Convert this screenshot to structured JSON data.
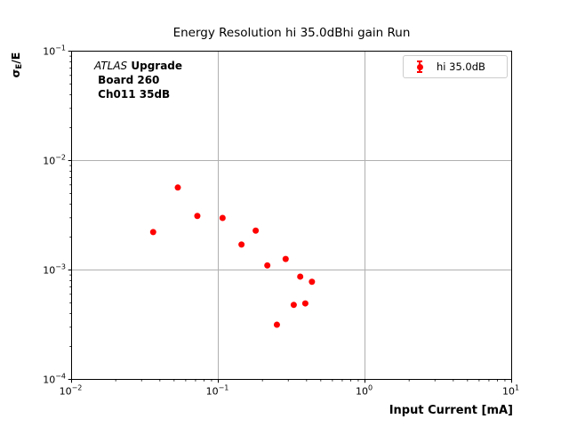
{
  "figure": {
    "title": "Energy Resolution hi 35.0dBhi gain Run",
    "background_color": "#ffffff"
  },
  "annotation": {
    "line1_italic": "ATLAS",
    "line1_bold": " Upgrade",
    "line2": " Board 260",
    "line3": " Ch011 35dB"
  },
  "legend": {
    "label": "hi 35.0dB",
    "marker": "errorbar-dot-icon",
    "marker_color": "#ff0000"
  },
  "ylabel_parts": {
    "sigma": "σ",
    "sub": "E",
    "rest": "/E"
  },
  "chart_data": {
    "type": "scatter",
    "title": "Energy Resolution hi 35.0dBhi gain Run",
    "xlabel": "Input Current [mA]",
    "ylabel": "σ_E/E",
    "xscale": "log",
    "yscale": "log",
    "xlim": [
      0.01,
      10
    ],
    "ylim": [
      0.0001,
      0.1
    ],
    "x_ticks": [
      {
        "value": 0.01,
        "exp": "−2"
      },
      {
        "value": 0.1,
        "exp": "−1"
      },
      {
        "value": 1,
        "exp": "0"
      },
      {
        "value": 10,
        "exp": "1"
      }
    ],
    "y_ticks": [
      {
        "value": 0.1,
        "exp": "−1"
      },
      {
        "value": 0.01,
        "exp": "−2"
      },
      {
        "value": 0.001,
        "exp": "−3"
      },
      {
        "value": 0.0001,
        "exp": "−4"
      }
    ],
    "grid": "major",
    "grid_color": "#b0b0b0",
    "legend_position": "upper right",
    "series": [
      {
        "name": "hi 35.0dB",
        "color": "#ff0000",
        "marker": "circle",
        "points": [
          [
            0.036,
            0.00222
          ],
          [
            0.053,
            0.00567
          ],
          [
            0.072,
            0.00312
          ],
          [
            0.107,
            0.00299
          ],
          [
            0.144,
            0.00171
          ],
          [
            0.18,
            0.00229
          ],
          [
            0.216,
            0.0011
          ],
          [
            0.251,
            0.000316
          ],
          [
            0.288,
            0.00126
          ],
          [
            0.327,
            0.00048
          ],
          [
            0.362,
            0.00087
          ],
          [
            0.392,
            0.000495
          ],
          [
            0.435,
            0.00078
          ]
        ]
      }
    ],
    "annotation_lines": [
      "ATLAS Upgrade",
      "Board 260",
      "Ch011 35dB"
    ]
  }
}
